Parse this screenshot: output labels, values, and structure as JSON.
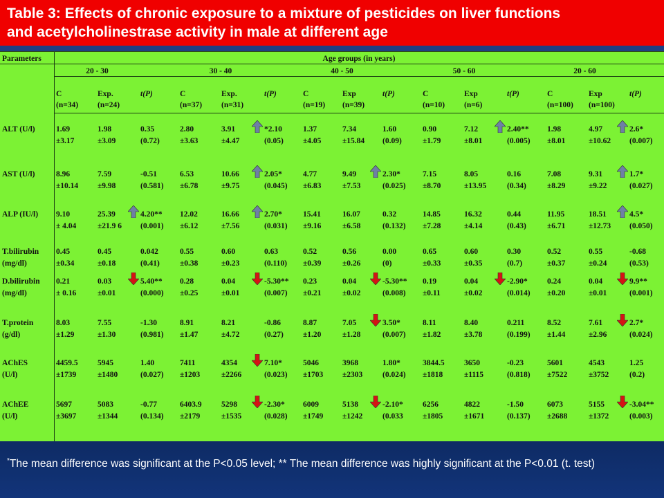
{
  "title": {
    "line1": "Table 3: Effects of chronic exposure to a mixture of pesticides on liver functions",
    "line2": "and acetylcholinestrase activity in male at different age"
  },
  "header": {
    "parameters": "Parameters",
    "age_groups": "Age groups (in years)",
    "groups": [
      "20  -  30",
      "30  -  40",
      "40  -  50",
      "50  -  60",
      "20  -  60"
    ],
    "cols": [
      [
        "C",
        "(n=34)"
      ],
      [
        "Exp.",
        "(n=24)"
      ],
      [
        "t(P)",
        ""
      ],
      [
        "C",
        "(n=37)"
      ],
      [
        "Exp.",
        "(n=31)"
      ],
      [
        "t(P)",
        ""
      ],
      [
        "C",
        "(n=19)"
      ],
      [
        "Exp",
        "(n=39)"
      ],
      [
        "t(P)",
        ""
      ],
      [
        "C",
        "(n=10)"
      ],
      [
        "Exp",
        "(n=6)"
      ],
      [
        "t(P)",
        ""
      ],
      [
        "C",
        "(n=100)"
      ],
      [
        "Exp",
        "(n=100)"
      ],
      [
        "t(P)",
        ""
      ]
    ]
  },
  "rows": [
    {
      "label": [
        "ALT (U/l)",
        ""
      ],
      "cells": [
        [
          "1.69",
          "±3.17"
        ],
        [
          "1.98",
          "±3.09"
        ],
        [
          "0.35",
          "(0.72)"
        ],
        [
          "2.80",
          "±3.63"
        ],
        [
          "3.91",
          "±4.47"
        ],
        [
          "*2.10",
          "(0.05)"
        ],
        [
          "1.37",
          "±4.05"
        ],
        [
          "7.34",
          "±15.84"
        ],
        [
          "1.60",
          "(0.09)"
        ],
        [
          "0.90",
          "±1.79"
        ],
        [
          "7.12",
          "±8.01"
        ],
        [
          "2.40**",
          "(0.005)"
        ],
        [
          "1.98",
          "±8.01"
        ],
        [
          "4.97",
          "±10.62"
        ],
        [
          "2.6*",
          "(0.007)"
        ]
      ]
    },
    {
      "label": [
        "AST (U/l)",
        ""
      ],
      "cells": [
        [
          "8.96",
          "±10.14"
        ],
        [
          "7.59",
          "±9.98"
        ],
        [
          "-0.51",
          "(0.581)"
        ],
        [
          "6.53",
          "±6.78"
        ],
        [
          "10.66",
          "±9.75"
        ],
        [
          "2.05*",
          "(0.045)"
        ],
        [
          "4.77",
          "±6.83"
        ],
        [
          "9.49",
          "±7.53"
        ],
        [
          "2.30*",
          "(0.025)"
        ],
        [
          "7.15",
          "±8.70"
        ],
        [
          "8.05",
          "±13.95"
        ],
        [
          "0.16",
          "(0.34)"
        ],
        [
          "7.08",
          "±8.29"
        ],
        [
          "9.31",
          "±9.22"
        ],
        [
          "1.7*",
          "(0.027)"
        ]
      ]
    },
    {
      "label": [
        "ALP (IU/l)",
        ""
      ],
      "cells": [
        [
          "9.10",
          "± 4.04"
        ],
        [
          "25.39",
          "±21.9 6"
        ],
        [
          "4.20**",
          "(0.001)"
        ],
        [
          "12.02",
          "±6.12"
        ],
        [
          "16.66",
          "±7.56"
        ],
        [
          "2.70*",
          "(0.031)"
        ],
        [
          "15.41",
          "±9.16"
        ],
        [
          "16.07",
          "±6.58"
        ],
        [
          "0.32",
          "(0.132)"
        ],
        [
          "14.85",
          "±7.28"
        ],
        [
          "16.32",
          "±4.14"
        ],
        [
          "0.44",
          "(0.43)"
        ],
        [
          "11.95",
          "±6.71"
        ],
        [
          "18.51",
          "±12.73"
        ],
        [
          "4.5*",
          "(0.050)"
        ]
      ]
    },
    {
      "label": [
        "T.bilirubin",
        "(mg/dl)"
      ],
      "cells": [
        [
          "0.45",
          "±0.34"
        ],
        [
          "0.45",
          "±0.18"
        ],
        [
          "0.042",
          "(0.41)"
        ],
        [
          "0.55",
          "±0.38"
        ],
        [
          "0.60",
          "±0.23"
        ],
        [
          "0.63",
          "(0.110)"
        ],
        [
          "0.52",
          "±0.39"
        ],
        [
          "0.56",
          "±0.26"
        ],
        [
          "0.00",
          "(0)"
        ],
        [
          "0.65",
          "±0.33"
        ],
        [
          "0.60",
          "±0.35"
        ],
        [
          "0.30",
          "(0.7)"
        ],
        [
          "0.52",
          "±0.37"
        ],
        [
          "0.55",
          "±0.24"
        ],
        [
          "-0.68",
          "(0.53)"
        ]
      ]
    },
    {
      "label": [
        "D.bilirubin",
        "(mg/dl)"
      ],
      "cells": [
        [
          "0.21",
          "± 0.16"
        ],
        [
          "0.03",
          "±0.01"
        ],
        [
          "5.40**",
          "(0.000)"
        ],
        [
          "0.28",
          "±0.25"
        ],
        [
          "0.04",
          "±0.01"
        ],
        [
          "-5.30**",
          "(0.007)"
        ],
        [
          "0.23",
          "±0.21"
        ],
        [
          "0.04",
          "±0.02"
        ],
        [
          "-5.30**",
          "(0.008)"
        ],
        [
          "0.19",
          "±0.11"
        ],
        [
          "0.04",
          "±0.02"
        ],
        [
          "-2.90*",
          "(0.014)"
        ],
        [
          "0.24",
          "±0.20"
        ],
        [
          "0.04",
          "±0.01"
        ],
        [
          "9.9**",
          "(0.001)"
        ]
      ]
    },
    {
      "label": [
        "T.protein",
        "(g/dl)"
      ],
      "cells": [
        [
          "8.03",
          "±1.29"
        ],
        [
          "7.55",
          " ±1.30"
        ],
        [
          "-1.30",
          "(0.981)"
        ],
        [
          "8.91",
          "±1.47"
        ],
        [
          "8.21",
          "±4.72"
        ],
        [
          "-0.86",
          "(0.27)"
        ],
        [
          "8.87",
          "±1.20"
        ],
        [
          "7.05",
          "±1.28"
        ],
        [
          "3.50*",
          "(0.007)"
        ],
        [
          "8.11",
          "±1.82"
        ],
        [
          "8.40",
          "±3.78"
        ],
        [
          "0.211",
          " (0.199)"
        ],
        [
          "8.52",
          "±1.44"
        ],
        [
          "7.61",
          "±2.96"
        ],
        [
          "2.7*",
          "(0.024)"
        ]
      ]
    },
    {
      "label": [
        "AChES",
        "(U/l)"
      ],
      "cells": [
        [
          "4459.5",
          "±1739"
        ],
        [
          "5945",
          "±1480"
        ],
        [
          "1.40",
          "(0.027)"
        ],
        [
          "7411",
          "±1203"
        ],
        [
          "4354",
          "±2266"
        ],
        [
          "7.10*",
          "(0.023)"
        ],
        [
          "5046",
          "±1703"
        ],
        [
          "3968",
          "±2303"
        ],
        [
          "1.80*",
          "(0.024)"
        ],
        [
          "3844.5",
          "±1818"
        ],
        [
          "3650",
          "±1115"
        ],
        [
          "-0.23",
          "(0.818)"
        ],
        [
          "5601",
          "±7522"
        ],
        [
          "4543",
          "±3752"
        ],
        [
          "1.25",
          "(0.2)"
        ]
      ]
    },
    {
      "label": [
        "AChEE",
        "(U/l)"
      ],
      "cells": [
        [
          "5697",
          "±3697"
        ],
        [
          "5083",
          "±1344"
        ],
        [
          "-0.77",
          "(0.134)"
        ],
        [
          "6403.9",
          "±2179"
        ],
        [
          "5298",
          "±1535"
        ],
        [
          "-2.30*",
          "(0.028)"
        ],
        [
          "6009",
          "±1749"
        ],
        [
          "5138",
          "±1242"
        ],
        [
          "-2.10*",
          "(0.033"
        ],
        [
          "6256",
          "±1805"
        ],
        [
          "4822",
          "±1671"
        ],
        [
          "-1.50",
          "(0.137)"
        ],
        [
          "6073",
          "±2688"
        ],
        [
          "5155",
          "±1372"
        ],
        [
          "-3.04**",
          "(0.003)"
        ]
      ]
    }
  ],
  "arrows": [
    {
      "row": 0,
      "col": 5,
      "dir": "up"
    },
    {
      "row": 0,
      "col": 11,
      "dir": "up"
    },
    {
      "row": 0,
      "col": 14,
      "dir": "up"
    },
    {
      "row": 1,
      "col": 5,
      "dir": "up"
    },
    {
      "row": 1,
      "col": 8,
      "dir": "up"
    },
    {
      "row": 1,
      "col": 14,
      "dir": "up"
    },
    {
      "row": 2,
      "col": 2,
      "dir": "up"
    },
    {
      "row": 2,
      "col": 5,
      "dir": "up"
    },
    {
      "row": 2,
      "col": 14,
      "dir": "up"
    },
    {
      "row": 4,
      "col": 2,
      "dir": "down"
    },
    {
      "row": 4,
      "col": 5,
      "dir": "down"
    },
    {
      "row": 4,
      "col": 8,
      "dir": "down"
    },
    {
      "row": 4,
      "col": 11,
      "dir": "down"
    },
    {
      "row": 4,
      "col": 14,
      "dir": "down"
    },
    {
      "row": 5,
      "col": 8,
      "dir": "down"
    },
    {
      "row": 5,
      "col": 14,
      "dir": "down"
    },
    {
      "row": 6,
      "col": 5,
      "dir": "down"
    },
    {
      "row": 7,
      "col": 5,
      "dir": "down"
    },
    {
      "row": 7,
      "col": 8,
      "dir": "down"
    },
    {
      "row": 7,
      "col": 14,
      "dir": "down"
    }
  ],
  "colors": {
    "up_arrow": "#6e7fa6",
    "down_arrow": "#d41414",
    "table_bg": "#7cf234",
    "title_bg": "#f00000"
  },
  "footer": {
    "mark1": "*",
    "text1": "The mean difference was significant at the P<0.05 level; ** The mean difference was highly significant at the P<0.01 (t. test)"
  }
}
